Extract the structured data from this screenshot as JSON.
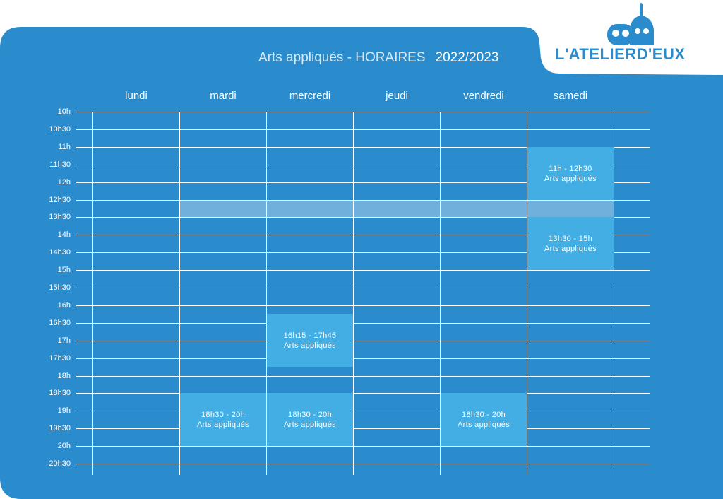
{
  "header": {
    "title": "Arts appliqués - HORAIRES",
    "year": "2022/2023",
    "logo_text": "L'ATELIERD'EUX"
  },
  "days": [
    "lundi",
    "mardi",
    "mercredi",
    "jeudi",
    "vendredi",
    "samedi"
  ],
  "times": [
    "10h",
    "10h30",
    "11h",
    "11h30",
    "12h",
    "12h30",
    "13h30",
    "14h",
    "14h30",
    "15h",
    "15h30",
    "16h",
    "16h30",
    "17h",
    "17h30",
    "18h",
    "18h30",
    "19h",
    "19h30",
    "20h",
    "20h30"
  ],
  "events": [
    {
      "day": "samedi",
      "time": "11h - 12h30",
      "label": "Arts appliqués"
    },
    {
      "day": "samedi",
      "time": "13h30 - 15h",
      "label": "Arts appliqués"
    },
    {
      "day": "mercredi",
      "time": "16h15 - 17h45",
      "label": "Arts appliqués"
    },
    {
      "day": "mardi",
      "time": "18h30 - 20h",
      "label": "Arts appliqués"
    },
    {
      "day": "mercredi",
      "time": "18h30 - 20h",
      "label": "Arts appliqués"
    },
    {
      "day": "vendredi",
      "time": "18h30 - 20h",
      "label": "Arts appliqués"
    }
  ],
  "colors": {
    "panel": "#2b8ccd",
    "event": "#43aee3",
    "lunch_band": "#6fb0dd",
    "logo": "#2b8ccd"
  }
}
